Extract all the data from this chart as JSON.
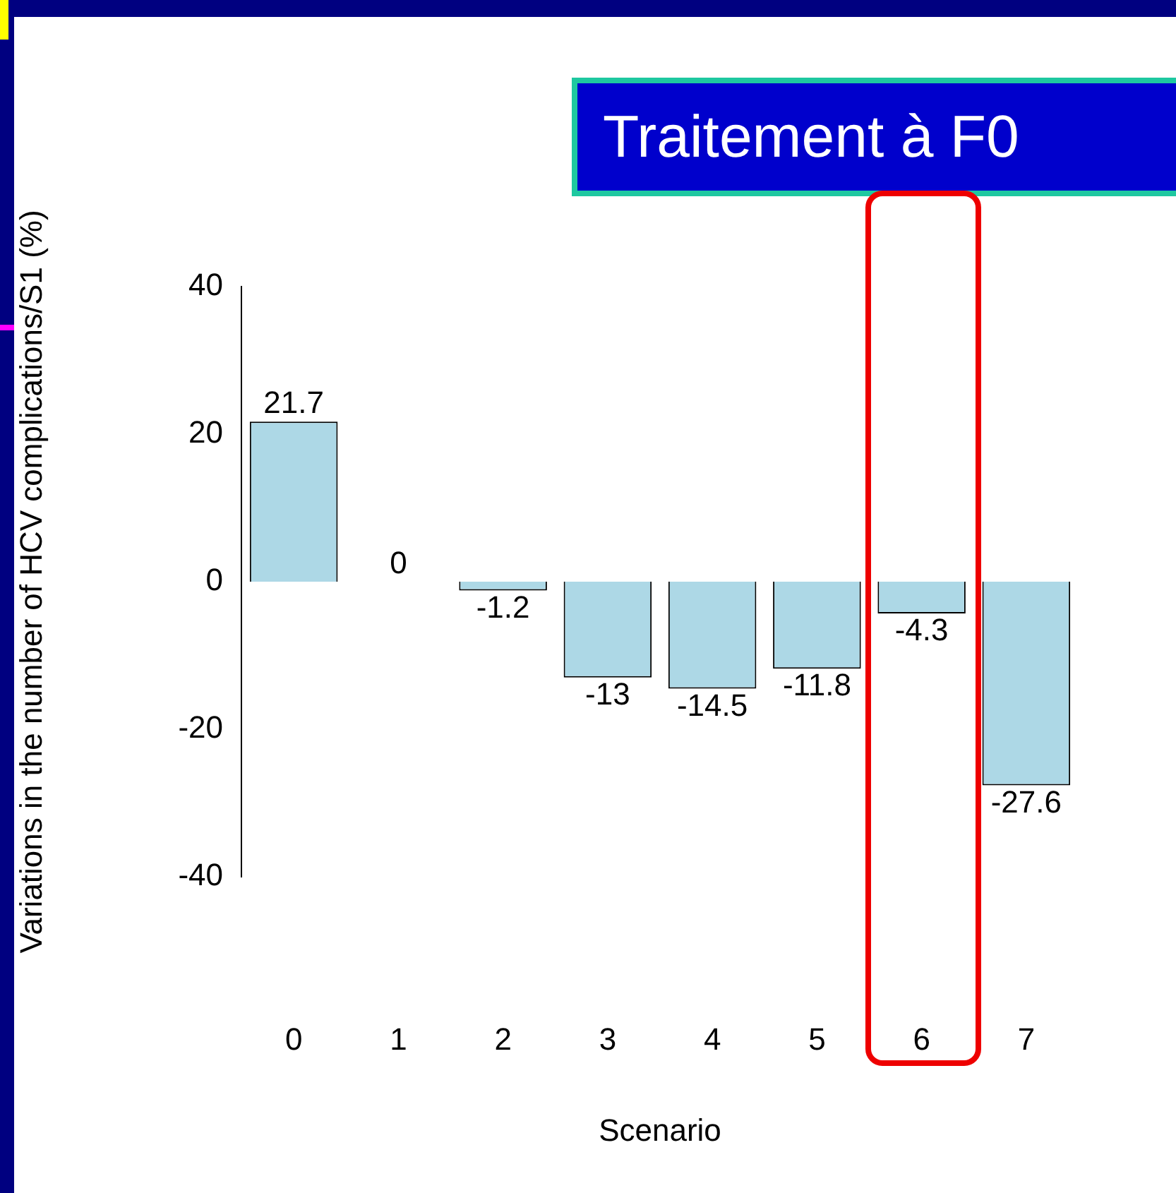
{
  "chart_data": {
    "type": "bar",
    "title": "Traitement à F0",
    "xlabel": "Scenario",
    "ylabel": "Variations in the number of HCV complications/S1 (%)",
    "categories": [
      "0",
      "1",
      "2",
      "3",
      "4",
      "5",
      "6",
      "7"
    ],
    "values": [
      21.7,
      0,
      -1.2,
      -13,
      -14.5,
      -11.8,
      -4.3,
      -27.6
    ],
    "color": "#add8e6",
    "ylim": [
      -40,
      40
    ],
    "yticks": [
      -40,
      -20,
      0,
      20,
      40
    ],
    "grid": false,
    "data_labels": true,
    "legend": false
  }
}
